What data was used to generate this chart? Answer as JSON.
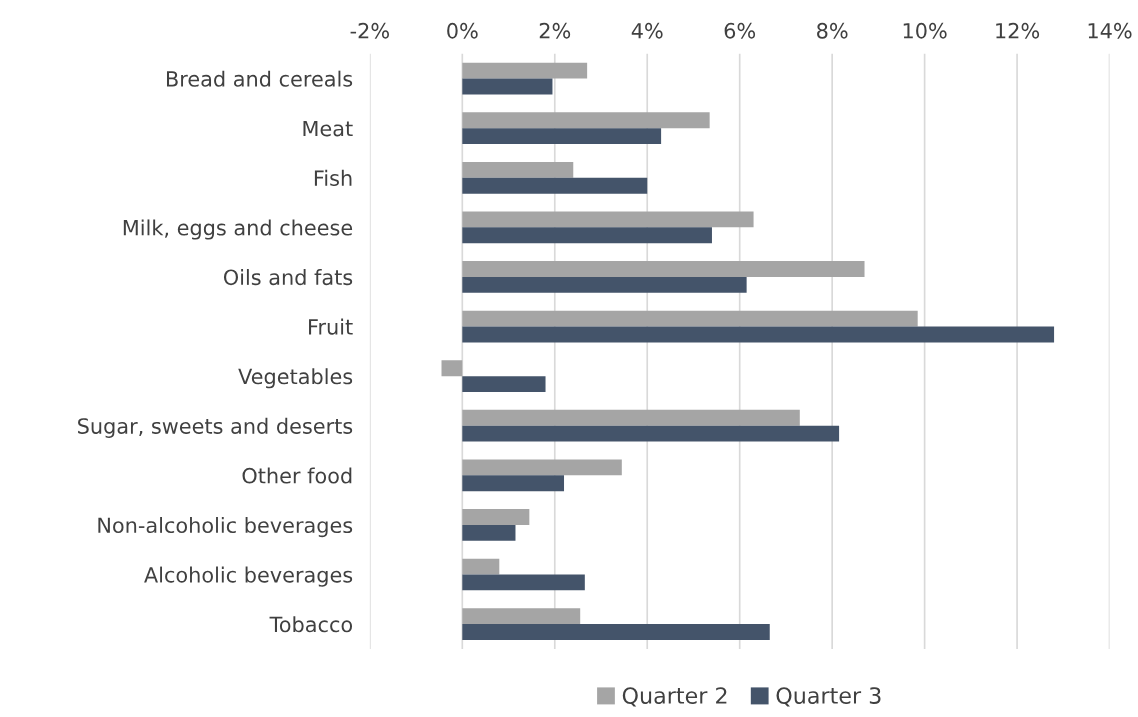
{
  "chart_data": {
    "type": "bar",
    "orientation": "horizontal",
    "categories": [
      "Bread and cereals",
      "Meat",
      "Fish",
      "Milk, eggs and cheese",
      "Oils and fats",
      "Fruit",
      "Vegetables",
      "Sugar, sweets and deserts",
      "Other food",
      "Non-alcoholic beverages",
      "Alcoholic beverages",
      "Tobacco"
    ],
    "series": [
      {
        "name": "Quarter 2",
        "color": "#a5a5a5",
        "values": [
          2.7,
          5.35,
          2.4,
          6.3,
          8.7,
          9.85,
          -0.45,
          7.3,
          3.45,
          1.45,
          0.8,
          2.55
        ]
      },
      {
        "name": "Quarter 3",
        "color": "#44546a",
        "values": [
          1.95,
          4.3,
          4.0,
          5.4,
          6.15,
          12.8,
          1.8,
          8.15,
          2.2,
          1.15,
          2.65,
          6.65
        ]
      }
    ],
    "xlim": [
      -2,
      14
    ],
    "xticks": [
      {
        "value": -2,
        "label": "-2%"
      },
      {
        "value": 0,
        "label": "0%"
      },
      {
        "value": 2,
        "label": "2%"
      },
      {
        "value": 4,
        "label": "4%"
      },
      {
        "value": 6,
        "label": "6%"
      },
      {
        "value": 8,
        "label": "8%"
      },
      {
        "value": 10,
        "label": "10%"
      },
      {
        "value": 12,
        "label": "12%"
      },
      {
        "value": 14,
        "label": "14%"
      }
    ],
    "grid": "x",
    "legend": "bottom"
  }
}
